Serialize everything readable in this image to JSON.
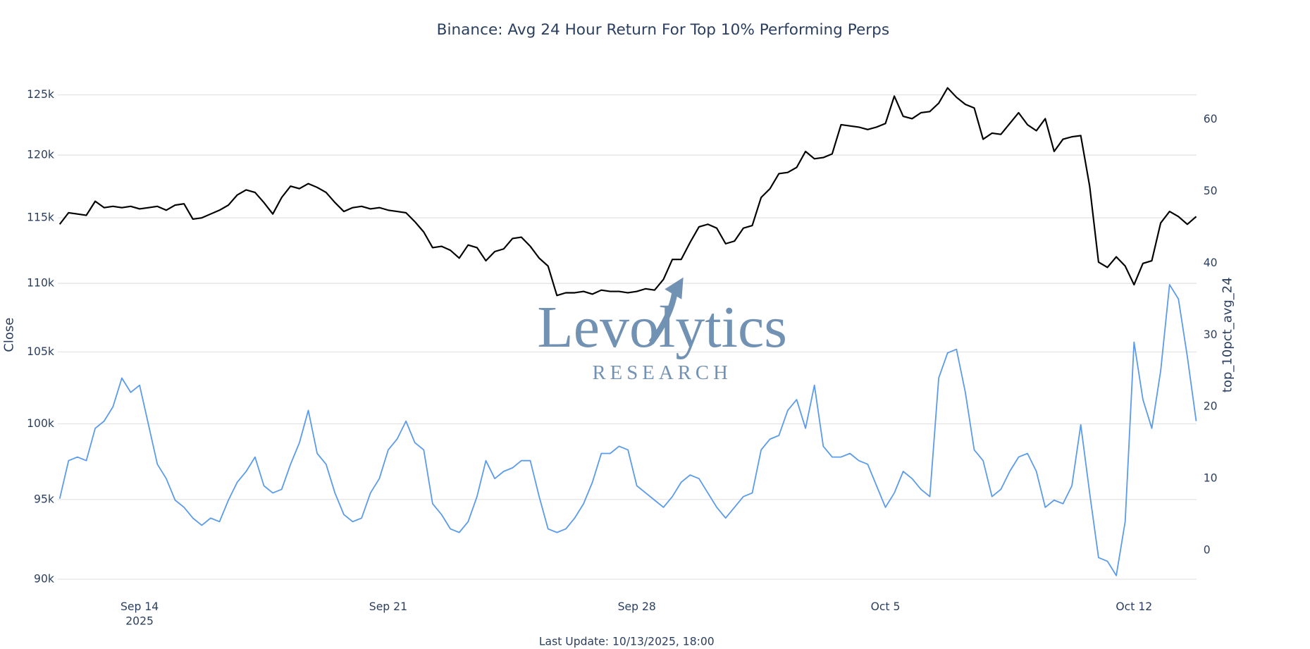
{
  "chart_data": {
    "type": "line",
    "title": "Binance: Avg 24 Hour Return For Top 10% Performing Perps",
    "ylabel": "Close",
    "y2label": "top_10pct_avg_24",
    "footer": "Last Update: 10/13/2025, 18:00",
    "watermark": {
      "name": "Levolytics",
      "tagline": "RESEARCH"
    },
    "log_y": true,
    "grid": true,
    "xlim": [
      "2025-09-11T16:34",
      "2025-10-13T18:17"
    ],
    "xticks": [
      {
        "value": "2025-09-14T00:00",
        "label": "Sep 14"
      },
      {
        "value": "2025-09-21T00:00",
        "label": "Sep 21"
      },
      {
        "value": "2025-09-28T00:00",
        "label": "Sep 28"
      },
      {
        "value": "2025-10-05T00:00",
        "label": "Oct 5"
      },
      {
        "value": "2025-10-12T00:00",
        "label": "Oct 12"
      }
    ],
    "x_year": "2025",
    "ylim": [
      89740,
      127700
    ],
    "yticks": [
      {
        "value": 90000,
        "label": "90k"
      },
      {
        "value": 95000,
        "label": "95k"
      },
      {
        "value": 100000,
        "label": "100k"
      },
      {
        "value": 105000,
        "label": "105k"
      },
      {
        "value": 110000,
        "label": "110k"
      },
      {
        "value": 115000,
        "label": "115k"
      },
      {
        "value": 120000,
        "label": "120k"
      },
      {
        "value": 125000,
        "label": "125k"
      }
    ],
    "y2lim": [
      -4.6,
      67.8
    ],
    "y2ticks": [
      0,
      10,
      20,
      30,
      40,
      50,
      60
    ],
    "x": [
      "2025-09-11T18:00",
      "2025-09-12T00:00",
      "2025-09-12T06:00",
      "2025-09-12T12:00",
      "2025-09-12T18:00",
      "2025-09-13T00:00",
      "2025-09-13T06:00",
      "2025-09-13T12:00",
      "2025-09-13T18:00",
      "2025-09-14T00:00",
      "2025-09-14T06:00",
      "2025-09-14T12:00",
      "2025-09-14T18:00",
      "2025-09-15T00:00",
      "2025-09-15T06:00",
      "2025-09-15T12:00",
      "2025-09-15T18:00",
      "2025-09-16T00:00",
      "2025-09-16T06:00",
      "2025-09-16T12:00",
      "2025-09-16T18:00",
      "2025-09-17T00:00",
      "2025-09-17T06:00",
      "2025-09-17T12:00",
      "2025-09-17T18:00",
      "2025-09-18T00:00",
      "2025-09-18T06:00",
      "2025-09-18T12:00",
      "2025-09-18T18:00",
      "2025-09-19T00:00",
      "2025-09-19T06:00",
      "2025-09-19T12:00",
      "2025-09-19T18:00",
      "2025-09-20T00:00",
      "2025-09-20T06:00",
      "2025-09-20T12:00",
      "2025-09-20T18:00",
      "2025-09-21T00:00",
      "2025-09-21T06:00",
      "2025-09-21T12:00",
      "2025-09-21T18:00",
      "2025-09-22T00:00",
      "2025-09-22T06:00",
      "2025-09-22T12:00",
      "2025-09-22T18:00",
      "2025-09-23T00:00",
      "2025-09-23T06:00",
      "2025-09-23T12:00",
      "2025-09-23T18:00",
      "2025-09-24T00:00",
      "2025-09-24T06:00",
      "2025-09-24T12:00",
      "2025-09-24T18:00",
      "2025-09-25T00:00",
      "2025-09-25T06:00",
      "2025-09-25T12:00",
      "2025-09-25T18:00",
      "2025-09-26T00:00",
      "2025-09-26T06:00",
      "2025-09-26T12:00",
      "2025-09-26T18:00",
      "2025-09-27T00:00",
      "2025-09-27T06:00",
      "2025-09-27T12:00",
      "2025-09-27T18:00",
      "2025-09-28T00:00",
      "2025-09-28T06:00",
      "2025-09-28T12:00",
      "2025-09-28T18:00",
      "2025-09-29T00:00",
      "2025-09-29T06:00",
      "2025-09-29T12:00",
      "2025-09-29T18:00",
      "2025-09-30T00:00",
      "2025-09-30T06:00",
      "2025-09-30T12:00",
      "2025-09-30T18:00",
      "2025-10-01T00:00",
      "2025-10-01T06:00",
      "2025-10-01T12:00",
      "2025-10-01T18:00",
      "2025-10-02T00:00",
      "2025-10-02T06:00",
      "2025-10-02T12:00",
      "2025-10-02T18:00",
      "2025-10-03T00:00",
      "2025-10-03T06:00",
      "2025-10-03T12:00",
      "2025-10-03T18:00",
      "2025-10-04T00:00",
      "2025-10-04T06:00",
      "2025-10-04T12:00",
      "2025-10-04T18:00",
      "2025-10-05T00:00",
      "2025-10-05T06:00",
      "2025-10-05T12:00",
      "2025-10-05T18:00",
      "2025-10-06T00:00",
      "2025-10-06T06:00",
      "2025-10-06T12:00",
      "2025-10-06T18:00",
      "2025-10-07T00:00",
      "2025-10-07T06:00",
      "2025-10-07T12:00",
      "2025-10-07T18:00",
      "2025-10-08T00:00",
      "2025-10-08T06:00",
      "2025-10-08T12:00",
      "2025-10-08T18:00",
      "2025-10-09T00:00",
      "2025-10-09T06:00",
      "2025-10-09T12:00",
      "2025-10-09T18:00",
      "2025-10-10T00:00",
      "2025-10-10T06:00",
      "2025-10-10T12:00",
      "2025-10-10T18:00",
      "2025-10-11T00:00",
      "2025-10-11T06:00",
      "2025-10-11T12:00",
      "2025-10-11T18:00",
      "2025-10-12T00:00",
      "2025-10-12T06:00",
      "2025-10-12T12:00",
      "2025-10-12T18:00",
      "2025-10-13T00:00",
      "2025-10-13T06:00",
      "2025-10-13T12:00",
      "2025-10-13T18:00"
    ],
    "series": [
      {
        "color": "#000000",
        "values": [
          114500,
          115400,
          115300,
          115200,
          116300,
          115800,
          115900,
          115800,
          115900,
          115700,
          115800,
          115900,
          115600,
          116000,
          116100,
          114900,
          115000,
          115300,
          115600,
          116000,
          116800,
          117200,
          117000,
          116200,
          115300,
          116600,
          117500,
          117300,
          117700,
          117400,
          117000,
          116200,
          115500,
          115800,
          115900,
          115700,
          115800,
          115600,
          115500,
          115400,
          114700,
          113900,
          112700,
          112800,
          112500,
          111900,
          112900,
          112700,
          111700,
          112400,
          112600,
          113400,
          113500,
          112800,
          111900,
          111300,
          109100,
          109300,
          109300,
          109400,
          109200,
          109500,
          109400,
          109400,
          109300,
          109400,
          109600,
          109500,
          110300,
          111800,
          111800,
          113100,
          114300,
          114500,
          114200,
          113000,
          113200,
          114200,
          114400,
          116600,
          117300,
          118500,
          118600,
          119000,
          120300,
          119700,
          119800,
          120100,
          122500,
          122400,
          122300,
          122100,
          122300,
          122600,
          124900,
          123200,
          123000,
          123500,
          123600,
          124300,
          125600,
          124800,
          124200,
          123900,
          121300,
          121800,
          121700,
          122600,
          123500,
          122500,
          122000,
          123000,
          120300,
          121300,
          121500,
          121600,
          117500,
          111600,
          111200,
          112000,
          111300,
          109900,
          111500,
          111700,
          114600,
          115500,
          115100,
          114500,
          115100
        ]
      },
      {
        "color": "#5b9bea",
        "axis": "y2",
        "values": [
          7.2,
          12.5,
          13,
          12.5,
          17,
          18,
          20,
          24,
          22,
          23,
          17.5,
          12,
          10,
          7,
          6,
          4.5,
          3.5,
          4.5,
          4,
          7,
          9.5,
          11,
          13,
          9,
          8,
          8.5,
          12,
          15,
          19.5,
          13.5,
          12,
          8,
          5,
          4,
          4.5,
          8,
          10,
          14,
          15.5,
          18,
          15,
          14,
          6.5,
          5,
          3,
          2.5,
          4,
          7.5,
          12.5,
          10,
          11,
          11.5,
          12.5,
          12.5,
          7.5,
          3,
          2.5,
          3,
          4.5,
          6.5,
          9.5,
          13.5,
          13.5,
          14.5,
          14,
          9,
          8,
          7,
          6,
          7.5,
          9.5,
          10.5,
          10,
          8,
          6,
          4.5,
          6,
          7.5,
          8,
          14,
          15.5,
          16,
          19.5,
          21,
          17,
          23,
          14.5,
          13,
          13,
          13.5,
          12.5,
          12,
          9,
          6,
          8,
          11,
          10,
          8.5,
          7.5,
          24,
          27.5,
          28,
          22,
          14,
          12.5,
          7.5,
          8.5,
          11,
          13,
          13.5,
          11,
          6,
          7,
          6.5,
          9,
          17.5,
          8,
          -1,
          -1.5,
          -3.5,
          4,
          29,
          21,
          17,
          25,
          37,
          35,
          27,
          18
        ]
      }
    ]
  }
}
